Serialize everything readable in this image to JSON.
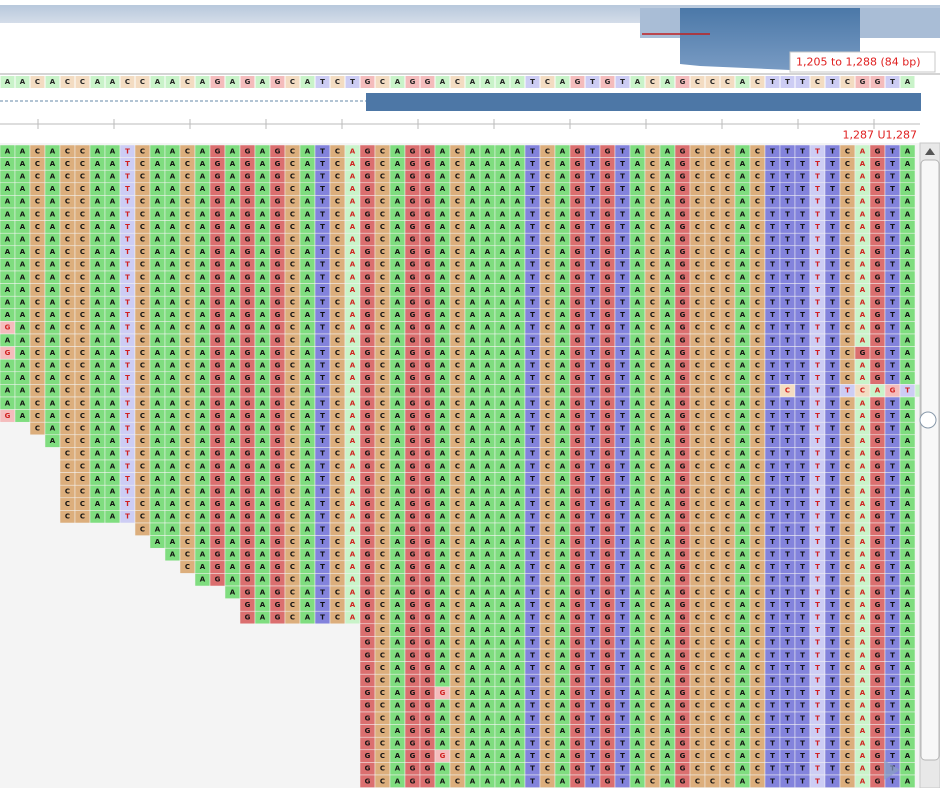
{
  "overview": {
    "range_label": "1,205 to 1,288 (84 bp)"
  },
  "reference": "AACACCAACCAACAGAGAGCATCTGCAGGACAAAATCAGTGTACAGCCCACTTTCTCGGTA",
  "cursor_label": "1,287 U1,287",
  "reads": [
    {
      "start": 0,
      "seq": "AACACCAATCAACAGAGAGCATCAGCAGGACAAAATCAGTGTACAGCCCACTTTTTCAGTA"
    },
    {
      "start": 0,
      "seq": "AACACCAATCAACAGAGAGCATCAGCAGGACAAAATCAGTGTACAGCCCACTTTTTCAGTA"
    },
    {
      "start": 0,
      "seq": "AACACCAATCAACAGAGAGCATCAGCAGGACAAAATCAGTGTACAGCCCACTTTTTCAGTA"
    },
    {
      "start": 0,
      "seq": "AACACCAATCAACAGAGAGCATCAGCAGGACAAAATCAGTGTACAGCCCACTTTTTCAGTA"
    },
    {
      "start": 0,
      "seq": "AACACCAATCAACAGAGAGCATCAGCAGGACAAAATCAGTGTACAGCCCACTTTTTCAGTA"
    },
    {
      "start": 0,
      "seq": "AACACCAATCAACAGAGAGCATCAGCAGGACAAAATCAGTGTACAGCCCACTTTTTCAGTA"
    },
    {
      "start": 0,
      "seq": "AACACCAATCAACAGAGAGCATCAGCAGGACAAAATCAGTGTACAGCCCACTTTTTCAGTA"
    },
    {
      "start": 0,
      "seq": "AACACCAATCAACAGAGAGCATCAGCAGGACAAAATCAGTGTACAGCCCACTTTTTCAGTA"
    },
    {
      "start": 0,
      "seq": "AACACCAATCAACAGAGAGCATCAGCAGGACAAAATCAGTGTACAGCCCACTTTTTCAGTA"
    },
    {
      "start": 0,
      "seq": "AACACCAATCAACAGAGAGCATCAGCAGGACAAAATCAGTGTACAGCCCACTTTTTCAGTA"
    },
    {
      "start": 0,
      "seq": "AACACCAATCAACAGAGAGCATCAGCAGGACAAAATCAGTGTACAGCCCACTTTTTCAGTA"
    },
    {
      "start": 0,
      "seq": "AACACCAATCAACAGAGAGCATCAGCAGGACAAAATCAGTGTACAGCCCACTTTTTCAGTA"
    },
    {
      "start": 0,
      "seq": "AACACCAATCAACAGAGAGCATCAGCAGGACAAAATCAGTGTACAGCCCACTTTTTCAGTA"
    },
    {
      "start": 0,
      "seq": "AACACCAATCAACAGAGAGCATCAGCAGGACAAAATCAGTGTACAGCCCACTTTTTCAGTA"
    },
    {
      "start": 0,
      "seq": "GACACCAATCAACAGAGAGCATCAGCAGGACAAAATCAGTGTACAGCCCACTTTTTCAGTA"
    },
    {
      "start": 0,
      "seq": "AACACCAATCAACAGAGAGCATCAGCAGGACAAAATCAGTGTACAGCCCACTTTTTCAGTA"
    },
    {
      "start": 0,
      "seq": "GACACCAATCAACAGAGAGCATCAGCAGGACAAAATCAGTGTACAGCCCACTTTTTCGGTA"
    },
    {
      "start": 0,
      "seq": "AACACCAATCAACAGAGAGCATCAGCAGGACAAAATCAGTGTACAGCCCACTTTTTCAGTA"
    },
    {
      "start": 0,
      "seq": "AACACCAATCAACAGAGAGCATCAGCAGGACAAAATCAGTGTACAGCCCACTTTTTCAGTA"
    },
    {
      "start": 0,
      "seq": "AACACCAATCAACAGAGAGCATCAGCAGGACAAAATCAGTGTACAGCCCACTCTTTTCAGTA"
    },
    {
      "start": 0,
      "seq": "AACACCAATCAACAGAGAGCATCAGCAGGACAAAATCAGTGTACAGCCCACTTTTTCAGTA"
    },
    {
      "start": 0,
      "seq": "GACACCAATCAACAGAGAGCATCAGCAGGACAAAATCAGTGTACAGCCCACTTTTTCAGTA"
    },
    {
      "start": 2,
      "seq": "CACCAATCAACAGAGAGCATCAGCAGGACAAAATCAGTGTACAGCCCACTTTTTCAGTA"
    },
    {
      "start": 3,
      "seq": "ACCAATCAACAGAGAGCATCAGCAGGACAAAATCAGTGTACAGCCCACTTTTTCAGTA"
    },
    {
      "start": 4,
      "seq": "CCAATCAACAGAGAGCATCAGCAGGACAAAATCAGTGTACAGCCCACTTTTTCAGTA"
    },
    {
      "start": 4,
      "seq": "CCAATCAACAGAGAGCATCAGCAGGACAAAATCAGTGTACAGCCCACTTTTTCAGTA"
    },
    {
      "start": 4,
      "seq": "CCAATCAACAGAGAGCATCAGCAGGACAAAATCAGTGTACAGCCCACTTTTTCAGTA"
    },
    {
      "start": 4,
      "seq": "CCAATCAACAGAGAGCATCAGCAGGACAAAATCAGTGTACAGCCCACTTTTTCAGTA"
    },
    {
      "start": 4,
      "seq": "CCAATCAACAGAGAGCATCAGCAGGACAAAATCAGTGTACAGCCCACTTTTTCAGTA"
    },
    {
      "start": 4,
      "seq": "CCAATCAACAGAGAGCATCAGCAGGACAAAATCAGTGTACAGCCCACTTTTTCAGTA"
    },
    {
      "start": 9,
      "seq": "CAACAGAGAGCATCAGCAGGACAAAATCAGTGTACAGCCCACTTTTTCAGTA"
    },
    {
      "start": 10,
      "seq": "AACAGAGAGCATCAGCAGGACAAAATCAGTGTACAGCCCACTTTTTCAGTA"
    },
    {
      "start": 11,
      "seq": "ACAGAGAGCATCAGCAGGACAAAATCAGTGTACAGCCCACTTTTTCAGTA"
    },
    {
      "start": 12,
      "seq": "CAGAGAGCATCAGCAGGACAAAATCAGTGTACAGCCCACTTTTTCAGTA"
    },
    {
      "start": 13,
      "seq": "AGAGAGCATCAGCAGGACAAAATCAGTGTACAGCCCACTTTTTCAGTA"
    },
    {
      "start": 15,
      "seq": "AGAGCATCAGCAGGACAAAATCAGTGTACAGCCCACTTTTTCAGTA"
    },
    {
      "start": 16,
      "seq": "GAGCATCAGCAGGACAAAATCAGTGTACAGCCCACTTTTTCAGTA"
    },
    {
      "start": 16,
      "seq": "GAGCATCAGCAGGACAAAATCAGTGTACAGCCCACTTTTTCAGTA"
    },
    {
      "start": 24,
      "seq": "GCAGGACAAAATCAGTGTACAGCCCACTTTTTCAGTA"
    },
    {
      "start": 24,
      "seq": "GCAGGACAAAATCAGTGTACAGCCCACTTTTTCAGTA"
    },
    {
      "start": 24,
      "seq": "GCAGGACAAAATCAGTGTACAGCCCACTTTTTCAGTA"
    },
    {
      "start": 24,
      "seq": "GCAGGACAAAATCAGTGTACAGCCCACTTTTTCAGTA"
    },
    {
      "start": 24,
      "seq": "GCAGGACAAAATCAGTGTACAGCCCACTTTTTCAGTA"
    },
    {
      "start": 24,
      "seq": "GCAGGGCAAAATCAGTGTACAGCCCACTTTTTCAGTA"
    },
    {
      "start": 24,
      "seq": "GCAGGACAAAATCAGTGTACAGCCCACTTTTTCAGTA"
    },
    {
      "start": 24,
      "seq": "GCAGGACAAAATCAGTGTACAGCCCACTTTTTCAGTA"
    },
    {
      "start": 24,
      "seq": "GCAGGACAAAATCAGTGTACAGCCCACTTTTTCAGTA"
    },
    {
      "start": 24,
      "seq": "GCAGGACAAAATCAGTGTACAGCCCACTTTTTCAGTA"
    },
    {
      "start": 24,
      "seq": "GCAGGGCAAAATCAGTGTACAGCCCACTTTTTCAGTA"
    },
    {
      "start": 24,
      "seq": "GCAGGACAAAATCAGTGTACAGCCCACTTTTTCAGTA"
    },
    {
      "start": 24,
      "seq": "GCAGGACAAAATCAGTGTACAGCCCACTTTTTCAGTA"
    }
  ]
}
